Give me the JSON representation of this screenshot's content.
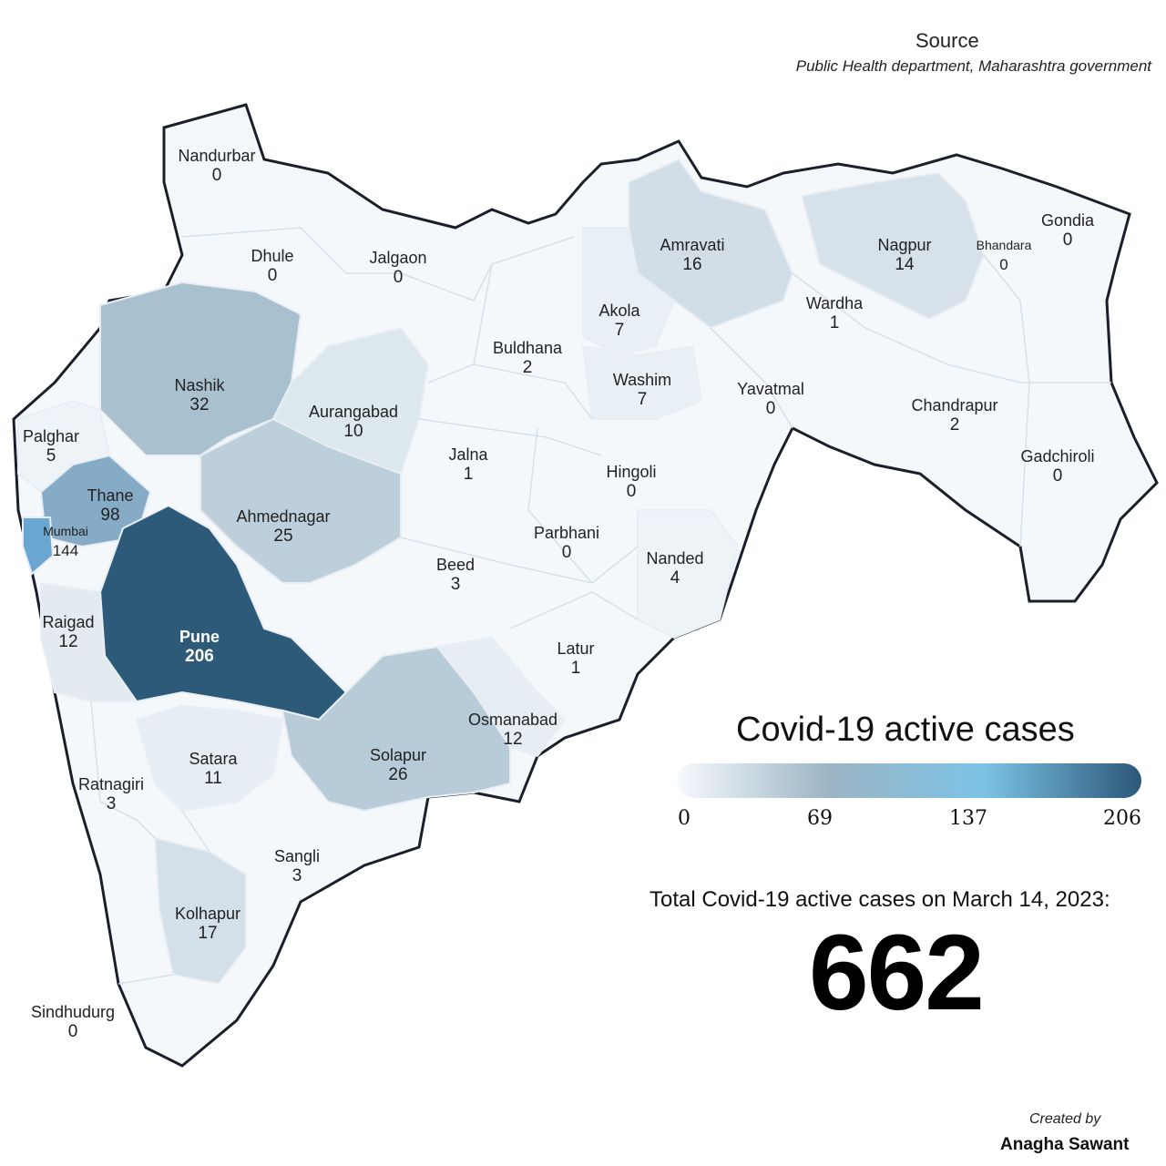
{
  "source": {
    "title": "Source",
    "text": "Public Health department, Maharashtra government"
  },
  "legend": {
    "title": "Covid-19 active cases",
    "ticks": [
      "0",
      "69",
      "137",
      "206"
    ],
    "colors": [
      "#f7fafd",
      "#9bb4c4",
      "#7cc3e6",
      "#2c5878"
    ]
  },
  "total": {
    "label": "Total Covid-19 active cases on March 14, 2023:",
    "value": "662"
  },
  "credit": {
    "line1": "Created by",
    "line2": "Anagha Sawant"
  },
  "districts": [
    {
      "name": "Nandurbar",
      "value": "0"
    },
    {
      "name": "Dhule",
      "value": "0"
    },
    {
      "name": "Jalgaon",
      "value": "0"
    },
    {
      "name": "Amravati",
      "value": "16"
    },
    {
      "name": "Nagpur",
      "value": "14"
    },
    {
      "name": "Bhandara",
      "value": "0"
    },
    {
      "name": "Gondia",
      "value": "0"
    },
    {
      "name": "Akola",
      "value": "7"
    },
    {
      "name": "Wardha",
      "value": "1"
    },
    {
      "name": "Buldhana",
      "value": "2"
    },
    {
      "name": "Washim",
      "value": "7"
    },
    {
      "name": "Yavatmal",
      "value": "0"
    },
    {
      "name": "Nashik",
      "value": "32"
    },
    {
      "name": "Aurangabad",
      "value": "10"
    },
    {
      "name": "Chandrapur",
      "value": "2"
    },
    {
      "name": "Palghar",
      "value": "5"
    },
    {
      "name": "Jalna",
      "value": "1"
    },
    {
      "name": "Hingoli",
      "value": "0"
    },
    {
      "name": "Gadchiroli",
      "value": "0"
    },
    {
      "name": "Thane",
      "value": "98"
    },
    {
      "name": "Mumbai",
      "value": "144"
    },
    {
      "name": "Ahmednagar",
      "value": "25"
    },
    {
      "name": "Parbhani",
      "value": "0"
    },
    {
      "name": "Beed",
      "value": "3"
    },
    {
      "name": "Nanded",
      "value": "4"
    },
    {
      "name": "Raigad",
      "value": "12"
    },
    {
      "name": "Pune",
      "value": "206"
    },
    {
      "name": "Latur",
      "value": "1"
    },
    {
      "name": "Osmanabad",
      "value": "12"
    },
    {
      "name": "Satara",
      "value": "11"
    },
    {
      "name": "Solapur",
      "value": "26"
    },
    {
      "name": "Ratnagiri",
      "value": "3"
    },
    {
      "name": "Sangli",
      "value": "3"
    },
    {
      "name": "Kolhapur",
      "value": "17"
    },
    {
      "name": "Sindhudurg",
      "value": "0"
    }
  ]
}
